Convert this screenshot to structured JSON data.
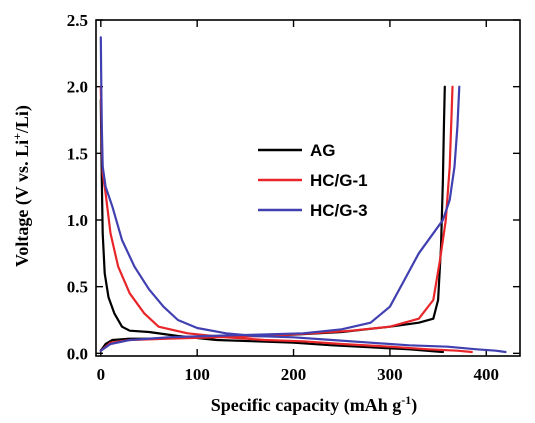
{
  "chart_data": {
    "type": "line",
    "xlabel_main": "Specific capacity (mAh g",
    "xlabel_sup": "-1",
    "xlabel_end": ")",
    "ylabel_main": "Voltage (V vs. Li",
    "ylabel_sup": "+",
    "ylabel_end": "/Li)",
    "xlim": [
      -5,
      435
    ],
    "ylim": [
      -0.02,
      2.5
    ],
    "xticks": [
      0,
      100,
      200,
      300,
      400
    ],
    "xtick_labels": [
      "0",
      "100",
      "200",
      "300",
      "400"
    ],
    "yticks": [
      0.0,
      0.5,
      1.0,
      1.5,
      2.0,
      2.5
    ],
    "ytick_labels": [
      "0.0",
      "0.5",
      "1.0",
      "1.5",
      "2.0",
      "2.5"
    ],
    "legend_position": "center",
    "series": [
      {
        "name": "AG",
        "color": "#000000",
        "discharge": [
          [
            0,
            1.9
          ],
          [
            1,
            1.3
          ],
          [
            2,
            0.9
          ],
          [
            4,
            0.6
          ],
          [
            8,
            0.42
          ],
          [
            14,
            0.3
          ],
          [
            22,
            0.2
          ],
          [
            30,
            0.17
          ],
          [
            50,
            0.16
          ],
          [
            80,
            0.13
          ],
          [
            120,
            0.1
          ],
          [
            160,
            0.09
          ],
          [
            200,
            0.08
          ],
          [
            240,
            0.06
          ],
          [
            280,
            0.045
          ],
          [
            320,
            0.03
          ],
          [
            345,
            0.015
          ],
          [
            355,
            0.01
          ]
        ],
        "charge": [
          [
            0,
            0.02
          ],
          [
            5,
            0.07
          ],
          [
            12,
            0.1
          ],
          [
            30,
            0.11
          ],
          [
            60,
            0.11
          ],
          [
            100,
            0.12
          ],
          [
            150,
            0.13
          ],
          [
            200,
            0.14
          ],
          [
            250,
            0.16
          ],
          [
            300,
            0.2
          ],
          [
            330,
            0.23
          ],
          [
            345,
            0.26
          ],
          [
            350,
            0.4
          ],
          [
            353,
            0.8
          ],
          [
            355,
            1.3
          ],
          [
            356,
            1.7
          ],
          [
            357,
            2.0
          ]
        ]
      },
      {
        "name": "HC/G-1",
        "color": "#e8262a",
        "discharge": [
          [
            0,
            2.0
          ],
          [
            1,
            1.6
          ],
          [
            2,
            1.35
          ],
          [
            5,
            1.2
          ],
          [
            10,
            0.9
          ],
          [
            18,
            0.65
          ],
          [
            30,
            0.45
          ],
          [
            45,
            0.3
          ],
          [
            60,
            0.2
          ],
          [
            90,
            0.15
          ],
          [
            130,
            0.12
          ],
          [
            170,
            0.1
          ],
          [
            210,
            0.09
          ],
          [
            250,
            0.07
          ],
          [
            300,
            0.05
          ],
          [
            340,
            0.03
          ],
          [
            370,
            0.02
          ],
          [
            385,
            0.01
          ]
        ],
        "charge": [
          [
            0,
            0.02
          ],
          [
            10,
            0.08
          ],
          [
            30,
            0.1
          ],
          [
            70,
            0.11
          ],
          [
            120,
            0.12
          ],
          [
            170,
            0.13
          ],
          [
            220,
            0.15
          ],
          [
            260,
            0.17
          ],
          [
            300,
            0.2
          ],
          [
            330,
            0.26
          ],
          [
            345,
            0.4
          ],
          [
            352,
            0.7
          ],
          [
            358,
            1.0
          ],
          [
            362,
            1.4
          ],
          [
            364,
            1.8
          ],
          [
            365,
            2.0
          ]
        ]
      },
      {
        "name": "HC/G-3",
        "color": "#4040b0",
        "discharge": [
          [
            0,
            2.37
          ],
          [
            0.5,
            2.0
          ],
          [
            1,
            1.7
          ],
          [
            2,
            1.4
          ],
          [
            5,
            1.25
          ],
          [
            12,
            1.1
          ],
          [
            22,
            0.85
          ],
          [
            35,
            0.65
          ],
          [
            50,
            0.48
          ],
          [
            65,
            0.35
          ],
          [
            80,
            0.25
          ],
          [
            100,
            0.19
          ],
          [
            130,
            0.15
          ],
          [
            160,
            0.13
          ],
          [
            200,
            0.12
          ],
          [
            240,
            0.1
          ],
          [
            280,
            0.08
          ],
          [
            320,
            0.06
          ],
          [
            360,
            0.05
          ],
          [
            390,
            0.03
          ],
          [
            410,
            0.02
          ],
          [
            420,
            0.01
          ]
        ],
        "charge": [
          [
            0,
            0.02
          ],
          [
            10,
            0.07
          ],
          [
            30,
            0.1
          ],
          [
            70,
            0.12
          ],
          [
            110,
            0.13
          ],
          [
            160,
            0.14
          ],
          [
            210,
            0.15
          ],
          [
            250,
            0.18
          ],
          [
            280,
            0.23
          ],
          [
            300,
            0.35
          ],
          [
            315,
            0.55
          ],
          [
            330,
            0.75
          ],
          [
            345,
            0.9
          ],
          [
            355,
            1.0
          ],
          [
            362,
            1.15
          ],
          [
            367,
            1.4
          ],
          [
            370,
            1.7
          ],
          [
            372,
            2.0
          ]
        ]
      }
    ]
  }
}
